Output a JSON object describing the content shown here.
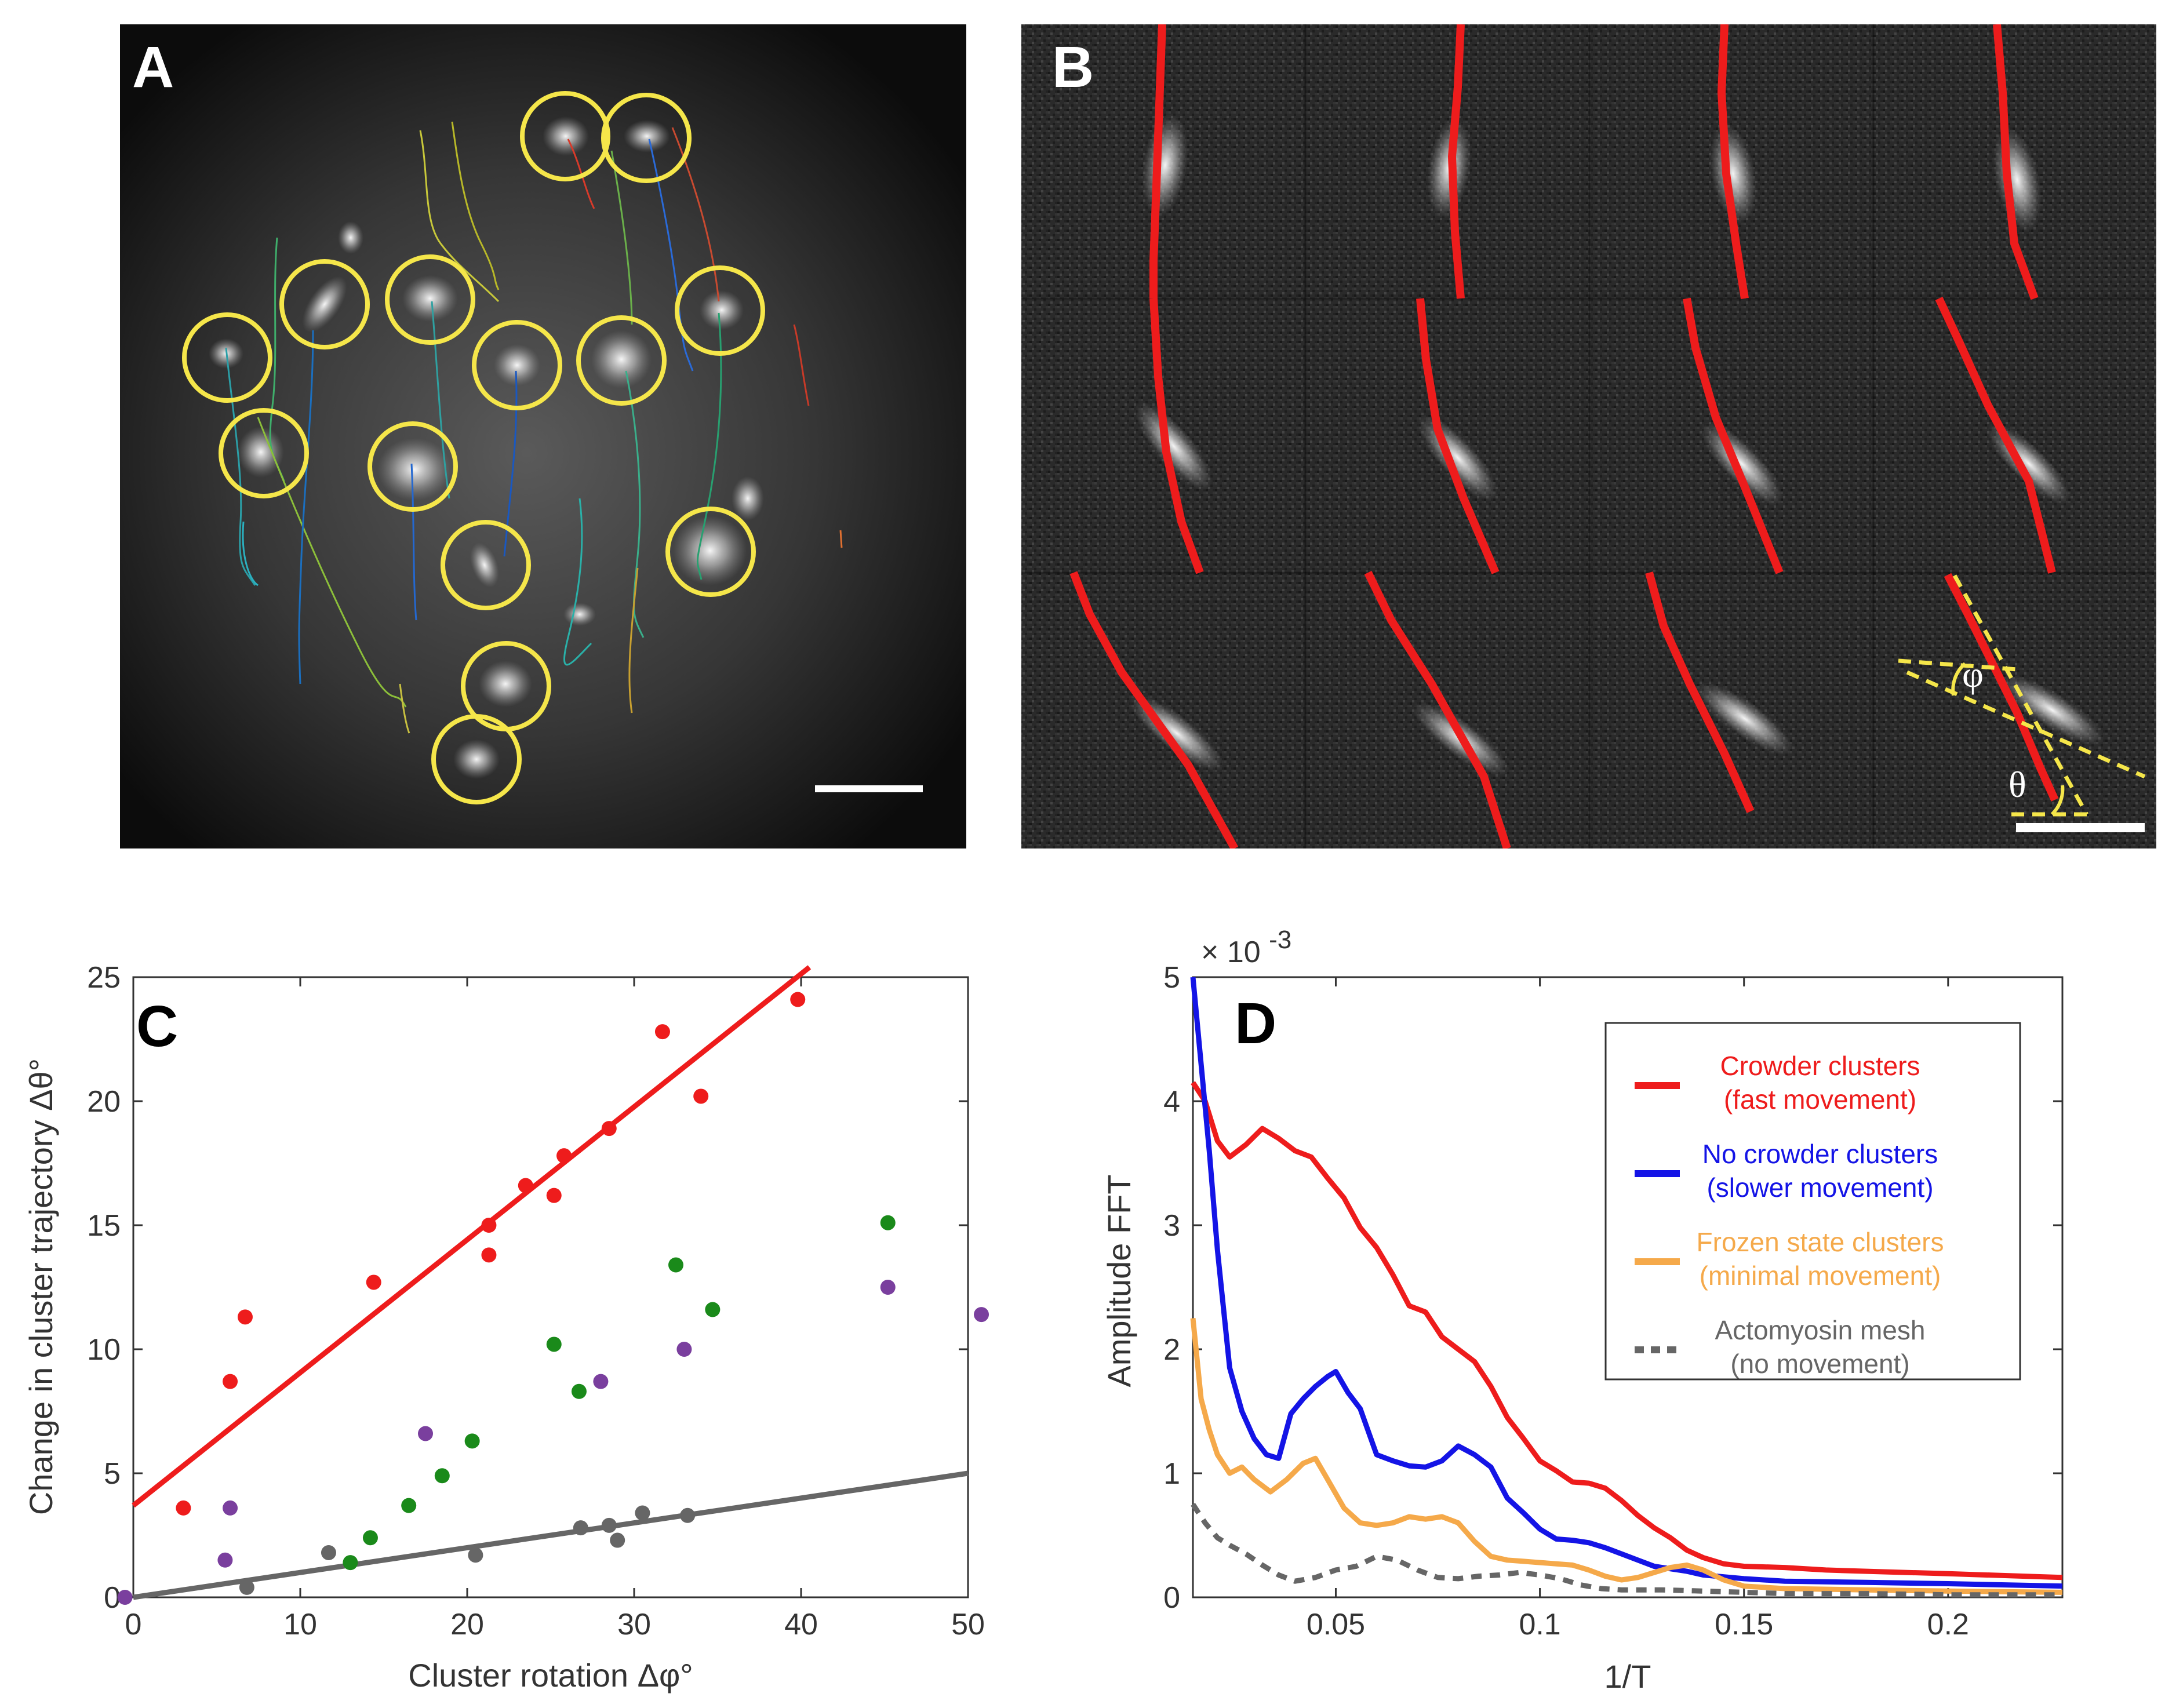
{
  "panels": {
    "a": {
      "letter": "A"
    },
    "b": {
      "letter": "B",
      "angle_phi": "φ",
      "angle_theta": "θ"
    },
    "c": {
      "letter": "C"
    },
    "d": {
      "letter": "D"
    }
  },
  "colors": {
    "red": "#ee1c1c",
    "blue": "#1414e6",
    "orange": "#f5a94a",
    "gray": "#666666",
    "green": "#1a8a1a",
    "purple": "#7a3f9e",
    "yellow": "#f5e64a",
    "scalebar": "#ffffff"
  },
  "chart_data": [
    {
      "type": "scatter",
      "panel": "C",
      "xlabel": "Cluster rotation Δφ°",
      "ylabel": "Change in cluster trajectory Δθ°",
      "xlim": [
        0,
        50
      ],
      "ylim": [
        0,
        25
      ],
      "xticks": [
        "0",
        "10",
        "20",
        "30",
        "40",
        "50"
      ],
      "yticks": [
        "0",
        "5",
        "10",
        "15",
        "20",
        "25"
      ],
      "series": [
        {
          "name": "red",
          "color": "#ee1c1c",
          "points": [
            [
              3,
              3.6
            ],
            [
              5.8,
              8.7
            ],
            [
              6.7,
              11.3
            ],
            [
              14.4,
              12.7
            ],
            [
              21.3,
              15.0
            ],
            [
              21.3,
              13.8
            ],
            [
              23.5,
              16.6
            ],
            [
              25.2,
              16.2
            ],
            [
              25.8,
              17.8
            ],
            [
              28.5,
              18.9
            ],
            [
              31.7,
              22.8
            ],
            [
              34.0,
              20.2
            ],
            [
              39.8,
              24.1
            ]
          ],
          "fit": [
            [
              0,
              3.7
            ],
            [
              40.5,
              25.4
            ]
          ]
        },
        {
          "name": "gray",
          "color": "#666666",
          "points": [
            [
              6.8,
              0.4
            ],
            [
              11.7,
              1.8
            ],
            [
              20.5,
              1.7
            ],
            [
              26.8,
              2.8
            ],
            [
              28.5,
              2.9
            ],
            [
              29.0,
              2.3
            ],
            [
              30.5,
              3.4
            ],
            [
              33.2,
              3.3
            ]
          ],
          "fit": [
            [
              0,
              0
            ],
            [
              50,
              5.0
            ]
          ]
        },
        {
          "name": "green",
          "color": "#1a8a1a",
          "points": [
            [
              13.0,
              1.4
            ],
            [
              14.2,
              2.4
            ],
            [
              16.5,
              3.7
            ],
            [
              18.5,
              4.9
            ],
            [
              20.3,
              6.3
            ],
            [
              25.2,
              10.2
            ],
            [
              26.7,
              8.3
            ],
            [
              32.5,
              13.4
            ],
            [
              34.7,
              11.6
            ],
            [
              45.2,
              15.1
            ]
          ]
        },
        {
          "name": "purple",
          "color": "#7a3f9e",
          "points": [
            [
              -0.5,
              0.0
            ],
            [
              5.5,
              1.5
            ],
            [
              5.8,
              3.6
            ],
            [
              17.5,
              6.6
            ],
            [
              28.0,
              8.7
            ],
            [
              33.0,
              10.0
            ],
            [
              45.2,
              12.5
            ],
            [
              50.8,
              11.4
            ]
          ]
        }
      ]
    },
    {
      "type": "line",
      "panel": "D",
      "xlabel": "1/T",
      "ylabel": "Amplitude FFT",
      "multiplier": "× 10",
      "exponent": "-3",
      "xlim": [
        0.015,
        0.228
      ],
      "ylim": [
        0,
        5
      ],
      "xticks": [
        {
          "value": 0.05,
          "label": "0.05"
        },
        {
          "value": 0.1,
          "label": "0.1"
        },
        {
          "value": 0.15,
          "label": "0.15"
        },
        {
          "value": 0.2,
          "label": "0.2"
        }
      ],
      "yticks": [
        {
          "value": 0,
          "label": "0"
        },
        {
          "value": 1,
          "label": "1"
        },
        {
          "value": 2,
          "label": "2"
        },
        {
          "value": 3,
          "label": "3"
        },
        {
          "value": 4,
          "label": "4"
        },
        {
          "value": 5,
          "label": "5"
        }
      ],
      "legend": [
        {
          "line1": "Crowder clusters",
          "line2": "(fast movement)",
          "color": "#ee1c1c",
          "text_color": "#ee1c1c",
          "dashed": false
        },
        {
          "line1": "No crowder clusters",
          "line2": "(slower movement)",
          "color": "#1414e6",
          "text_color": "#1414e6",
          "dashed": false
        },
        {
          "line1": "Frozen state clusters",
          "line2": "(minimal movement)",
          "color": "#f5a94a",
          "text_color": "#f5a94a",
          "dashed": false
        },
        {
          "line1": "Actomyosin mesh",
          "line2": "(no movement)",
          "color": "#666666",
          "text_color": "#666666",
          "dashed": true
        }
      ],
      "series": [
        {
          "name": "Crowder clusters",
          "color": "#ee1c1c",
          "dashed": false,
          "points": [
            [
              0.015,
              4.15
            ],
            [
              0.018,
              4.0
            ],
            [
              0.021,
              3.68
            ],
            [
              0.024,
              3.55
            ],
            [
              0.028,
              3.65
            ],
            [
              0.032,
              3.78
            ],
            [
              0.036,
              3.7
            ],
            [
              0.04,
              3.6
            ],
            [
              0.044,
              3.55
            ],
            [
              0.048,
              3.38
            ],
            [
              0.052,
              3.22
            ],
            [
              0.056,
              2.98
            ],
            [
              0.06,
              2.82
            ],
            [
              0.064,
              2.6
            ],
            [
              0.068,
              2.35
            ],
            [
              0.072,
              2.3
            ],
            [
              0.076,
              2.1
            ],
            [
              0.08,
              2.0
            ],
            [
              0.084,
              1.9
            ],
            [
              0.088,
              1.7
            ],
            [
              0.092,
              1.45
            ],
            [
              0.096,
              1.28
            ],
            [
              0.1,
              1.1
            ],
            [
              0.104,
              1.02
            ],
            [
              0.108,
              0.93
            ],
            [
              0.112,
              0.92
            ],
            [
              0.116,
              0.88
            ],
            [
              0.12,
              0.78
            ],
            [
              0.124,
              0.66
            ],
            [
              0.128,
              0.56
            ],
            [
              0.132,
              0.48
            ],
            [
              0.136,
              0.38
            ],
            [
              0.14,
              0.32
            ],
            [
              0.145,
              0.27
            ],
            [
              0.15,
              0.25
            ],
            [
              0.16,
              0.24
            ],
            [
              0.17,
              0.22
            ],
            [
              0.18,
              0.21
            ],
            [
              0.2,
              0.19
            ],
            [
              0.228,
              0.16
            ]
          ]
        },
        {
          "name": "No crowder clusters",
          "color": "#1414e6",
          "dashed": false,
          "points": [
            [
              0.015,
              5.0
            ],
            [
              0.017,
              4.3
            ],
            [
              0.019,
              3.6
            ],
            [
              0.021,
              2.8
            ],
            [
              0.024,
              1.85
            ],
            [
              0.027,
              1.5
            ],
            [
              0.03,
              1.28
            ],
            [
              0.033,
              1.15
            ],
            [
              0.036,
              1.12
            ],
            [
              0.039,
              1.48
            ],
            [
              0.042,
              1.6
            ],
            [
              0.045,
              1.7
            ],
            [
              0.048,
              1.78
            ],
            [
              0.05,
              1.82
            ],
            [
              0.053,
              1.65
            ],
            [
              0.056,
              1.52
            ],
            [
              0.06,
              1.15
            ],
            [
              0.064,
              1.1
            ],
            [
              0.068,
              1.06
            ],
            [
              0.072,
              1.05
            ],
            [
              0.076,
              1.1
            ],
            [
              0.08,
              1.22
            ],
            [
              0.084,
              1.15
            ],
            [
              0.088,
              1.05
            ],
            [
              0.092,
              0.8
            ],
            [
              0.096,
              0.68
            ],
            [
              0.1,
              0.55
            ],
            [
              0.104,
              0.47
            ],
            [
              0.108,
              0.46
            ],
            [
              0.112,
              0.44
            ],
            [
              0.116,
              0.4
            ],
            [
              0.12,
              0.35
            ],
            [
              0.124,
              0.3
            ],
            [
              0.128,
              0.25
            ],
            [
              0.132,
              0.23
            ],
            [
              0.136,
              0.21
            ],
            [
              0.14,
              0.18
            ],
            [
              0.15,
              0.15
            ],
            [
              0.16,
              0.13
            ],
            [
              0.18,
              0.12
            ],
            [
              0.2,
              0.11
            ],
            [
              0.228,
              0.09
            ]
          ]
        },
        {
          "name": "Frozen state clusters",
          "color": "#f5a94a",
          "dashed": false,
          "points": [
            [
              0.015,
              2.25
            ],
            [
              0.017,
              1.6
            ],
            [
              0.019,
              1.35
            ],
            [
              0.021,
              1.15
            ],
            [
              0.024,
              1.0
            ],
            [
              0.027,
              1.05
            ],
            [
              0.03,
              0.95
            ],
            [
              0.034,
              0.85
            ],
            [
              0.038,
              0.95
            ],
            [
              0.042,
              1.08
            ],
            [
              0.045,
              1.12
            ],
            [
              0.048,
              0.95
            ],
            [
              0.052,
              0.72
            ],
            [
              0.056,
              0.6
            ],
            [
              0.06,
              0.58
            ],
            [
              0.064,
              0.6
            ],
            [
              0.068,
              0.65
            ],
            [
              0.072,
              0.63
            ],
            [
              0.076,
              0.65
            ],
            [
              0.08,
              0.6
            ],
            [
              0.084,
              0.45
            ],
            [
              0.088,
              0.33
            ],
            [
              0.092,
              0.3
            ],
            [
              0.096,
              0.29
            ],
            [
              0.1,
              0.28
            ],
            [
              0.104,
              0.27
            ],
            [
              0.108,
              0.26
            ],
            [
              0.112,
              0.22
            ],
            [
              0.116,
              0.17
            ],
            [
              0.12,
              0.14
            ],
            [
              0.124,
              0.16
            ],
            [
              0.128,
              0.2
            ],
            [
              0.132,
              0.24
            ],
            [
              0.136,
              0.26
            ],
            [
              0.14,
              0.22
            ],
            [
              0.145,
              0.14
            ],
            [
              0.15,
              0.09
            ],
            [
              0.16,
              0.07
            ],
            [
              0.18,
              0.06
            ],
            [
              0.2,
              0.05
            ],
            [
              0.228,
              0.04
            ]
          ]
        },
        {
          "name": "Actomyosin mesh",
          "color": "#666666",
          "dashed": true,
          "points": [
            [
              0.015,
              0.75
            ],
            [
              0.018,
              0.6
            ],
            [
              0.021,
              0.48
            ],
            [
              0.024,
              0.42
            ],
            [
              0.028,
              0.35
            ],
            [
              0.032,
              0.26
            ],
            [
              0.036,
              0.18
            ],
            [
              0.04,
              0.13
            ],
            [
              0.045,
              0.16
            ],
            [
              0.05,
              0.22
            ],
            [
              0.055,
              0.25
            ],
            [
              0.06,
              0.33
            ],
            [
              0.065,
              0.3
            ],
            [
              0.07,
              0.22
            ],
            [
              0.075,
              0.16
            ],
            [
              0.08,
              0.15
            ],
            [
              0.085,
              0.17
            ],
            [
              0.09,
              0.18
            ],
            [
              0.095,
              0.2
            ],
            [
              0.1,
              0.18
            ],
            [
              0.105,
              0.15
            ],
            [
              0.11,
              0.1
            ],
            [
              0.115,
              0.07
            ],
            [
              0.12,
              0.06
            ],
            [
              0.13,
              0.06
            ],
            [
              0.14,
              0.05
            ],
            [
              0.15,
              0.04
            ],
            [
              0.16,
              0.03
            ],
            [
              0.18,
              0.03
            ],
            [
              0.2,
              0.02
            ],
            [
              0.228,
              0.02
            ]
          ]
        }
      ]
    }
  ]
}
